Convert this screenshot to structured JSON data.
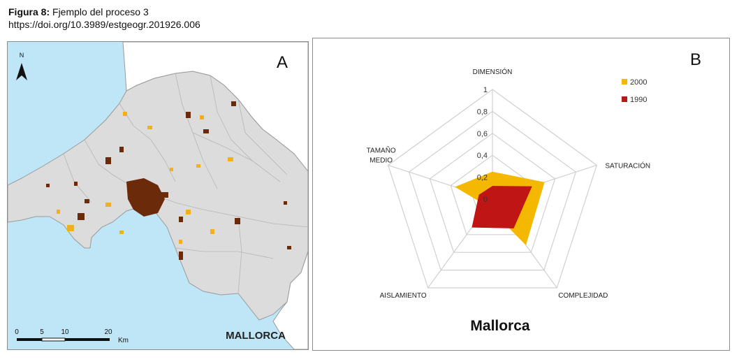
{
  "caption": {
    "figure_label": "Figura 8:",
    "figure_title": "Fjemplo del proceso 3",
    "doi": "https://doi.org/10.3989/estgeogr.201926.006"
  },
  "map_panel": {
    "panel_letter": "A",
    "north_label": "N",
    "region_label": "MALLORCA",
    "scale_ticks": [
      "0",
      "5",
      "10",
      "20"
    ],
    "scale_unit": "Km",
    "colors": {
      "sea": "#bfe6f7",
      "land": "#dcdcdc",
      "urban_2000": "#f2b01e",
      "urban_1990": "#6b2a0a"
    }
  },
  "radar_panel": {
    "panel_letter": "B",
    "title": "Mallorca",
    "legend": [
      {
        "label": "2000",
        "color": "#f5b800"
      },
      {
        "label": "1990",
        "color": "#c01515"
      }
    ]
  },
  "chart_data": {
    "type": "radar",
    "title": "Mallorca",
    "axes": [
      "DIMENSIÓN",
      "SATURACIÓN",
      "COMPLEJIDAD",
      "AISLAMIENTO",
      "TAMAÑO MEDIO"
    ],
    "rlim": [
      0,
      1
    ],
    "r_ticks": [
      "0",
      "0,2",
      "0,4",
      "0,6",
      "0,8",
      "1"
    ],
    "grid": true,
    "legend_position": "top-right",
    "series": [
      {
        "name": "2000",
        "values": [
          0.25,
          0.5,
          0.52,
          0.08,
          0.36
        ]
      },
      {
        "name": "1990",
        "values": [
          0.12,
          0.38,
          0.33,
          0.32,
          0.13
        ]
      }
    ]
  }
}
